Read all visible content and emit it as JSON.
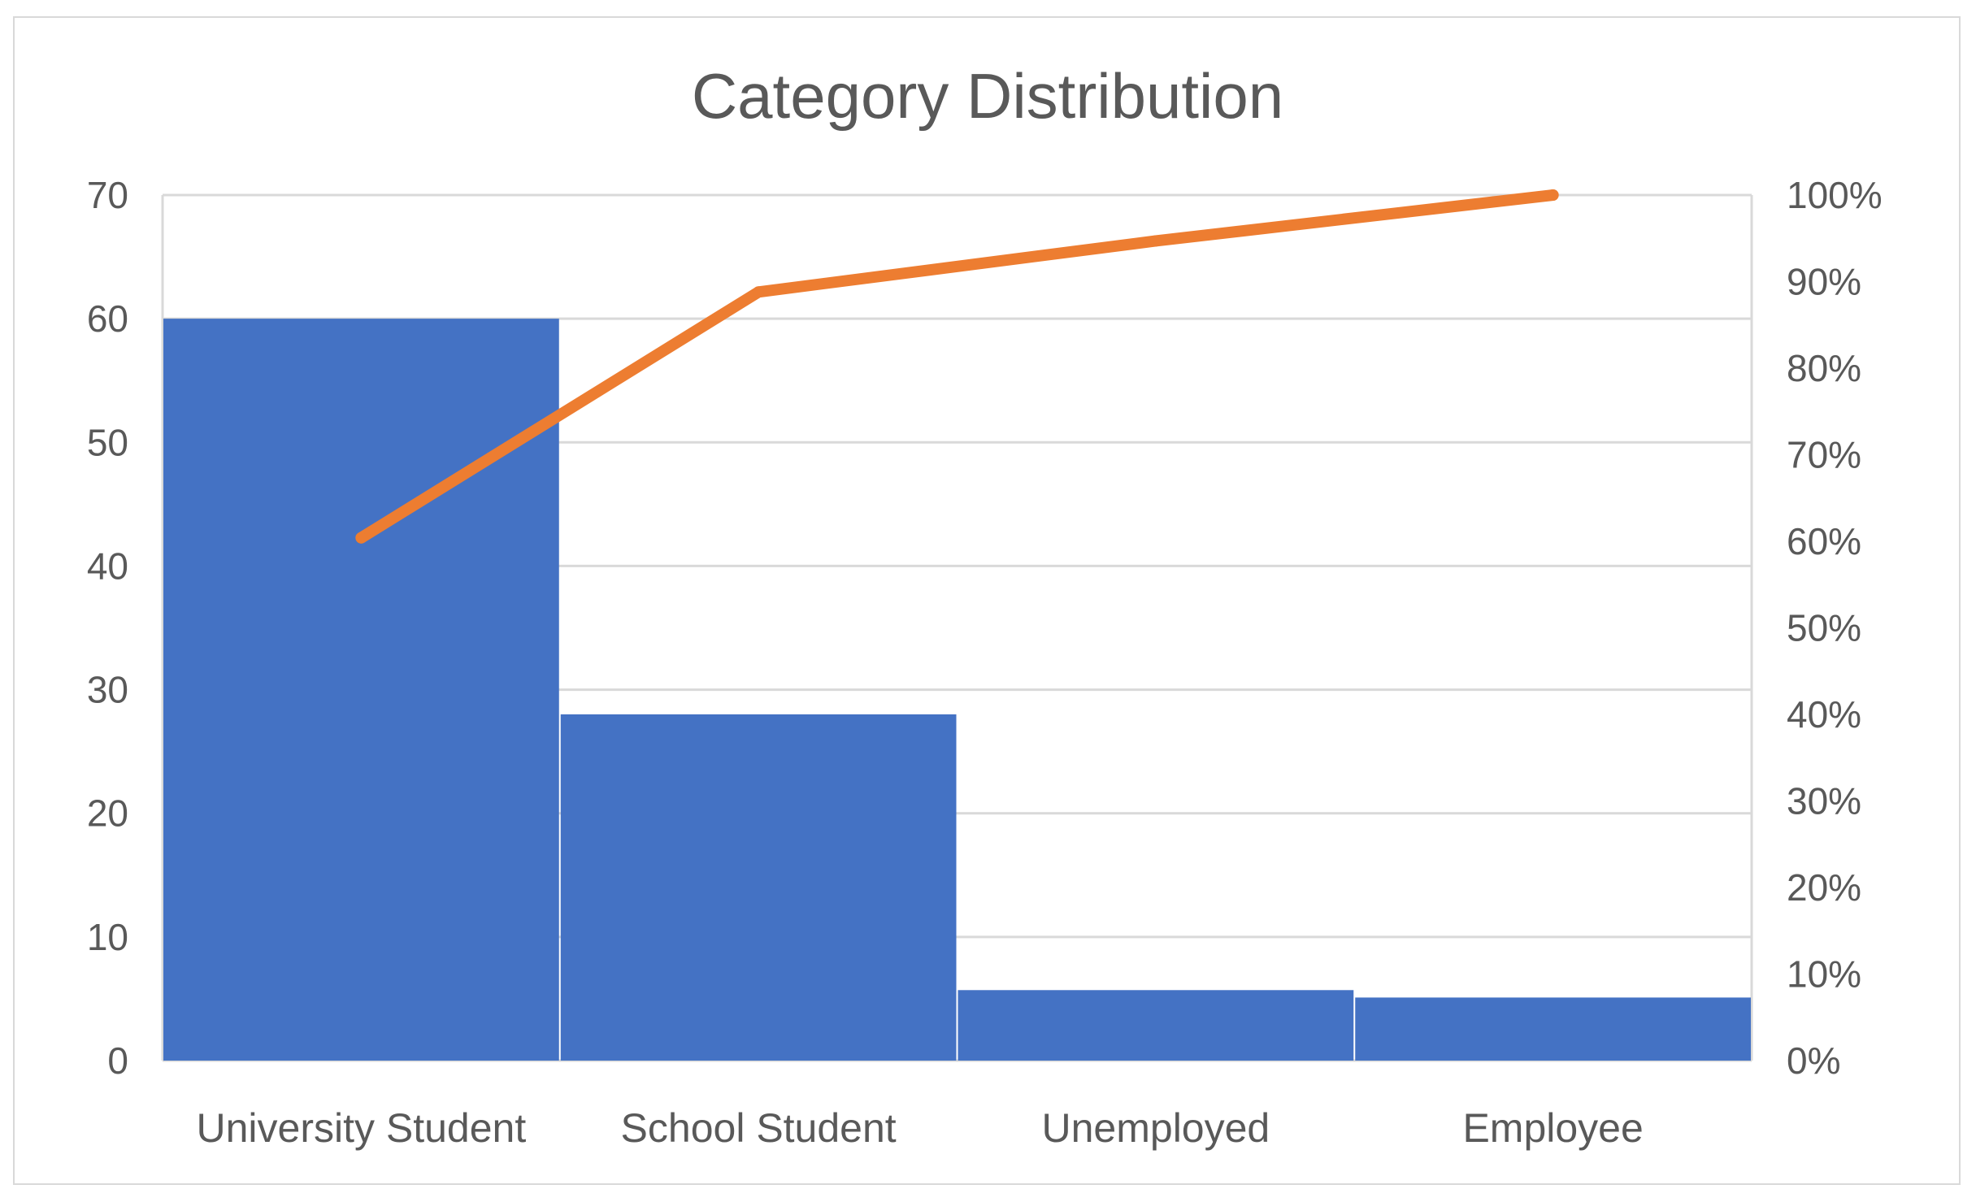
{
  "chart_data": {
    "type": "bar",
    "title": "Category Distribution",
    "categories": [
      "University Student",
      "School Student",
      "Unemployed",
      "Employee"
    ],
    "series": [
      {
        "type": "bar",
        "values": [
          60,
          28,
          5.7,
          5.1
        ],
        "color": "#4472C4"
      },
      {
        "type": "line",
        "axis": "secondary",
        "values": [
          60.4,
          88.8,
          94.7,
          100
        ],
        "color": "#ED7D31"
      }
    ],
    "y_left": {
      "lim": [
        0,
        70
      ],
      "ticks": [
        "0",
        "10",
        "20",
        "30",
        "40",
        "50",
        "60",
        "70"
      ]
    },
    "y_right": {
      "lim": [
        0,
        100
      ],
      "ticks": [
        "0%",
        "10%",
        "20%",
        "30%",
        "40%",
        "50%",
        "60%",
        "70%",
        "80%",
        "90%",
        "100%"
      ]
    },
    "grid": true,
    "legend": "none"
  }
}
